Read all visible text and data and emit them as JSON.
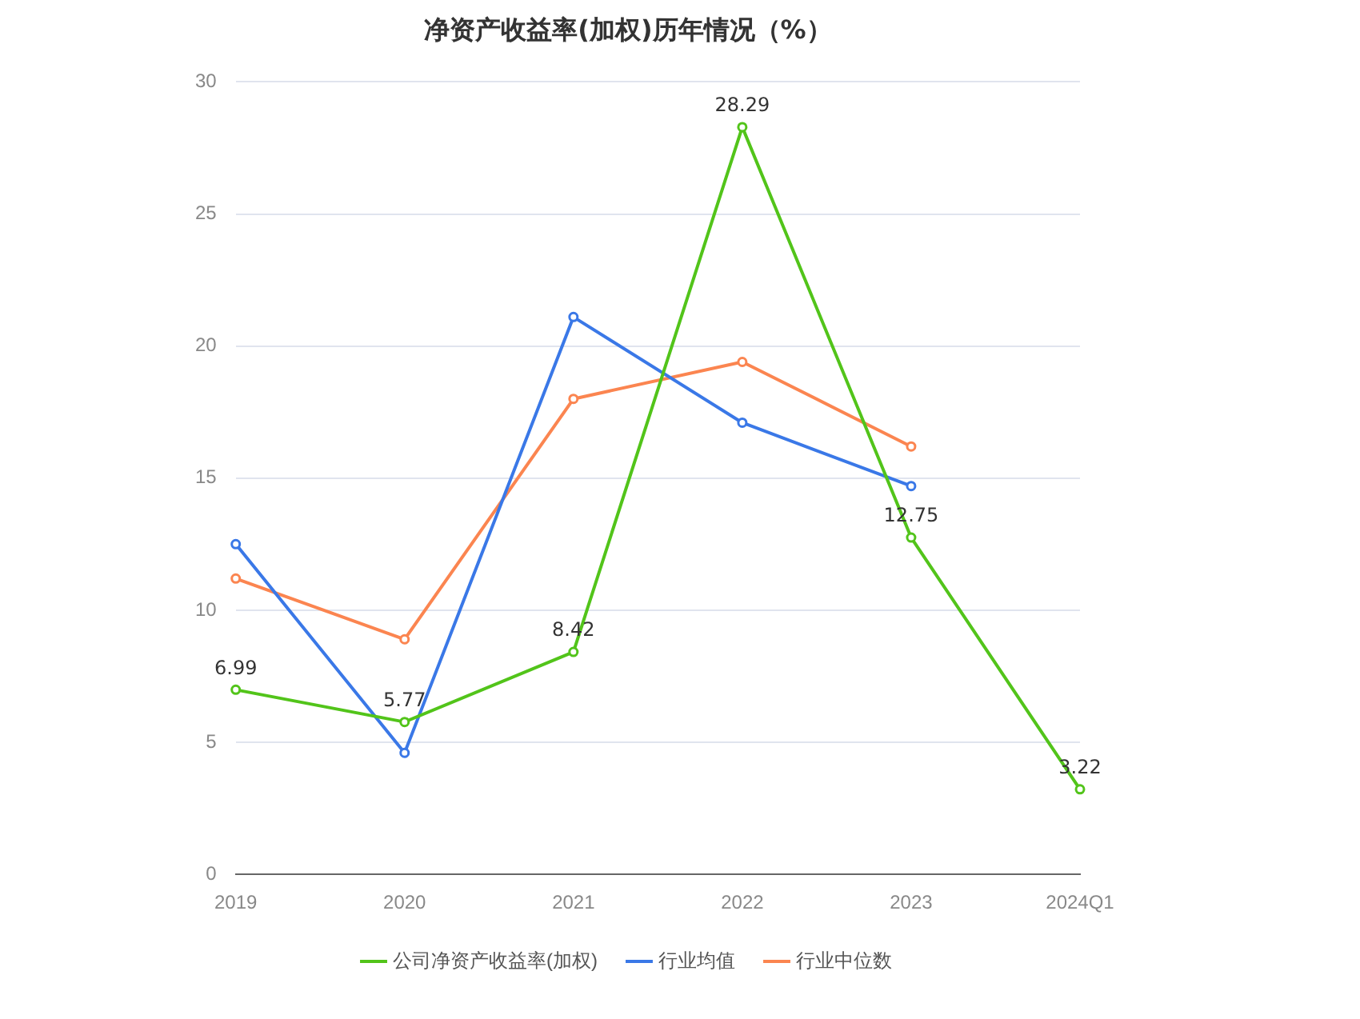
{
  "chart_data": {
    "type": "line",
    "title": "净资产收益率(加权)历年情况（%）",
    "categories": [
      "2019",
      "2020",
      "2021",
      "2022",
      "2023",
      "2024Q1"
    ],
    "series": [
      {
        "name": "公司净资产收益率(加权)",
        "color": "#52c41a",
        "values": [
          6.99,
          5.77,
          8.42,
          28.29,
          12.75,
          3.22
        ],
        "value_labels": [
          "6.99",
          "5.77",
          "8.42",
          "28.29",
          "12.75",
          "3.22"
        ]
      },
      {
        "name": "行业均值",
        "color": "#3a78e7",
        "values": [
          12.5,
          4.6,
          21.1,
          17.1,
          14.7,
          null
        ]
      },
      {
        "name": "行业中位数",
        "color": "#fb8550",
        "values": [
          11.2,
          8.9,
          18.0,
          19.4,
          16.2,
          null
        ]
      }
    ],
    "ylim": [
      0,
      30
    ],
    "yticks": [
      0,
      5,
      10,
      15,
      20,
      25,
      30
    ],
    "grid": "y",
    "legend": "bottom",
    "marker": "circle",
    "line_style": "solid"
  }
}
